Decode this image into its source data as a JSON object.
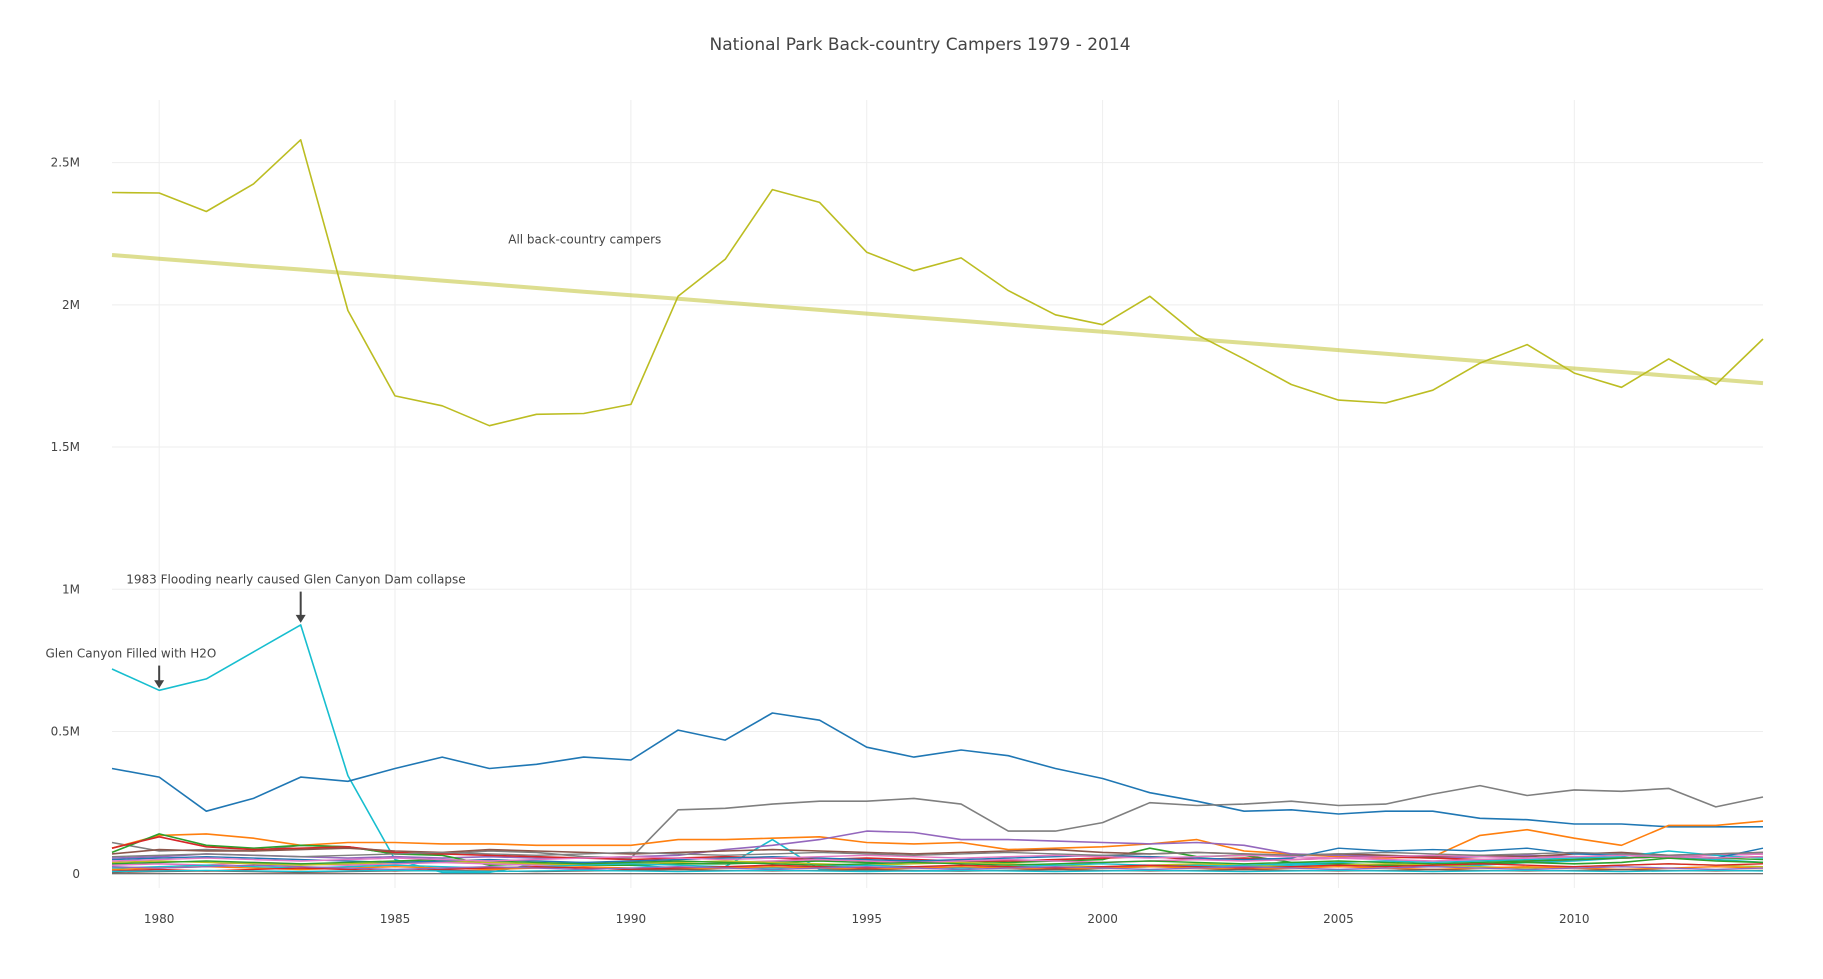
{
  "chart_data": {
    "type": "line",
    "title": "National Park Back-country Campers 1979 - 2014",
    "xlabel": "",
    "ylabel": "",
    "xlim": [
      1979,
      2014
    ],
    "ylim": [
      -50000,
      2720000
    ],
    "grid": true,
    "legend": "none",
    "x_ticks": [
      1980,
      1985,
      1990,
      1995,
      2000,
      2005,
      2010
    ],
    "y_ticks": [
      {
        "value": 0,
        "label": "0"
      },
      {
        "value": 500000,
        "label": "0.5M"
      },
      {
        "value": 1000000,
        "label": "1M"
      },
      {
        "value": 1500000,
        "label": "1.5M"
      },
      {
        "value": 2000000,
        "label": "2M"
      },
      {
        "value": 2500000,
        "label": "2.5M"
      }
    ],
    "x": [
      1979,
      1980,
      1981,
      1982,
      1983,
      1984,
      1985,
      1986,
      1987,
      1988,
      1989,
      1990,
      1991,
      1992,
      1993,
      1994,
      1995,
      1996,
      1997,
      1998,
      1999,
      2000,
      2001,
      2002,
      2003,
      2004,
      2005,
      2006,
      2007,
      2008,
      2009,
      2010,
      2011,
      2012,
      2013,
      2014
    ],
    "series": [
      {
        "color": "#bcbd22",
        "width": 1.6,
        "values": [
          2395000,
          2393000,
          2328000,
          2425000,
          2580000,
          1980000,
          1680000,
          1645000,
          1575000,
          1615000,
          1618000,
          1650000,
          2030000,
          2160000,
          2405000,
          2360000,
          2185000,
          2120000,
          2165000,
          2050000,
          1965000,
          1930000,
          2030000,
          1895000,
          1810000,
          1720000,
          1665000,
          1655000,
          1700000,
          1795000,
          1860000,
          1760000,
          1710000,
          1810000,
          1720000,
          1880000
        ]
      },
      {
        "color": "#bcbd22",
        "width": 4,
        "opacity": 0.5,
        "values": [
          2175000,
          2162000,
          2149000,
          2136000,
          2124000,
          2111000,
          2098000,
          2085000,
          2072000,
          2059000,
          2046000,
          2034000,
          2021000,
          2008000,
          1995000,
          1982000,
          1969000,
          1956000,
          1944000,
          1931000,
          1918000,
          1905000,
          1892000,
          1879000,
          1866000,
          1854000,
          1841000,
          1828000,
          1815000,
          1802000,
          1789000,
          1776000,
          1764000,
          1751000,
          1738000,
          1725000
        ]
      },
      {
        "color": "#17becf",
        "width": 1.6,
        "values": [
          720000,
          645000,
          685000,
          780000,
          875000,
          345000,
          50000,
          5000,
          5000,
          35000,
          40000,
          30000,
          20000,
          25000,
          120000,
          15000,
          12000,
          10000,
          10000,
          12000,
          15000,
          20000,
          25000,
          30000,
          25000,
          30000,
          35000,
          30000,
          25000,
          30000,
          40000,
          45000,
          55000,
          60000,
          50000,
          40000
        ]
      },
      {
        "color": "#1f77b4",
        "width": 1.6,
        "values": [
          370000,
          340000,
          220000,
          265000,
          340000,
          325000,
          370000,
          410000,
          370000,
          385000,
          410000,
          400000,
          505000,
          470000,
          565000,
          540000,
          445000,
          410000,
          435000,
          415000,
          370000,
          335000,
          285000,
          255000,
          220000,
          225000,
          210000,
          220000,
          220000,
          195000,
          190000,
          175000,
          175000,
          165000,
          165000,
          165000
        ]
      },
      {
        "color": "#7f7f7f",
        "width": 1.6,
        "values": [
          110000,
          80000,
          85000,
          80000,
          100000,
          95000,
          70000,
          70000,
          80000,
          75000,
          60000,
          55000,
          225000,
          230000,
          245000,
          255000,
          255000,
          265000,
          245000,
          150000,
          150000,
          180000,
          250000,
          240000,
          245000,
          255000,
          240000,
          245000,
          280000,
          310000,
          275000,
          295000,
          290000,
          300000,
          235000,
          270000
        ]
      },
      {
        "color": "#ff7f0e",
        "width": 1.6,
        "values": [
          90000,
          135000,
          140000,
          125000,
          100000,
          110000,
          110000,
          105000,
          105000,
          100000,
          100000,
          100000,
          120000,
          120000,
          125000,
          130000,
          110000,
          105000,
          110000,
          85000,
          90000,
          95000,
          105000,
          120000,
          80000,
          70000,
          60000,
          55000,
          60000,
          135000,
          155000,
          125000,
          100000,
          170000,
          170000,
          185000
        ]
      },
      {
        "color": "#9467bd",
        "width": 1.6,
        "values": [
          55000,
          60000,
          70000,
          65000,
          60000,
          55000,
          60000,
          55000,
          60000,
          55000,
          55000,
          60000,
          65000,
          85000,
          100000,
          120000,
          150000,
          145000,
          120000,
          120000,
          115000,
          110000,
          105000,
          110000,
          100000,
          70000,
          65000,
          60000,
          55000,
          60000,
          65000,
          60000,
          55000,
          60000,
          65000,
          70000
        ]
      },
      {
        "color": "#2ca02c",
        "width": 1.6,
        "values": [
          75000,
          140000,
          100000,
          90000,
          100000,
          95000,
          70000,
          65000,
          30000,
          35000,
          30000,
          30000,
          35000,
          35000,
          40000,
          45000,
          40000,
          45000,
          45000,
          40000,
          45000,
          50000,
          90000,
          60000,
          65000,
          40000,
          35000,
          30000,
          30000,
          35000,
          40000,
          35000,
          40000,
          55000,
          45000,
          40000
        ]
      },
      {
        "color": "#d62728",
        "width": 1.6,
        "values": [
          90000,
          130000,
          95000,
          85000,
          90000,
          95000,
          75000,
          70000,
          65000,
          60000,
          55000,
          50000,
          55000,
          60000,
          55000,
          50000,
          55000,
          50000,
          45000,
          45000,
          50000,
          55000,
          60000,
          50000,
          55000,
          50000,
          55000,
          60000,
          55000,
          50000,
          45000,
          50000,
          55000,
          60000,
          55000,
          60000
        ]
      },
      {
        "color": "#8c564b",
        "width": 1.6,
        "values": [
          70000,
          85000,
          80000,
          80000,
          85000,
          90000,
          80000,
          75000,
          85000,
          80000,
          75000,
          70000,
          75000,
          80000,
          85000,
          80000,
          75000,
          70000,
          75000,
          80000,
          85000,
          75000,
          70000,
          75000,
          70000,
          65000,
          70000,
          65000,
          60000,
          65000,
          60000,
          70000,
          75000,
          65000,
          70000,
          75000
        ]
      },
      {
        "color": "#e377c2",
        "width": 1.6,
        "values": [
          30000,
          35000,
          30000,
          40000,
          35000,
          30000,
          35000,
          40000,
          35000,
          30000,
          35000,
          40000,
          45000,
          40000,
          45000,
          50000,
          45000,
          40000,
          45000,
          50000,
          45000,
          40000,
          45000,
          50000,
          45000,
          50000,
          55000,
          50000,
          45000,
          50000,
          55000,
          60000,
          55000,
          60000,
          65000,
          70000
        ]
      },
      {
        "color": "#bcbd22",
        "width": 1.4,
        "values": [
          40000,
          45000,
          40000,
          35000,
          30000,
          35000,
          40000,
          45000,
          40000,
          35000,
          30000,
          35000,
          40000,
          45000,
          40000,
          35000,
          30000,
          35000,
          40000,
          35000,
          30000,
          25000,
          30000,
          35000,
          30000,
          25000,
          30000,
          35000,
          30000,
          25000,
          20000,
          25000,
          30000,
          35000,
          30000,
          25000
        ]
      },
      {
        "color": "#17becf",
        "width": 1.4,
        "values": [
          20000,
          25000,
          30000,
          25000,
          20000,
          25000,
          30000,
          25000,
          20000,
          25000,
          30000,
          35000,
          30000,
          25000,
          20000,
          25000,
          30000,
          25000,
          20000,
          25000,
          30000,
          35000,
          30000,
          25000,
          30000,
          35000,
          40000,
          45000,
          40000,
          45000,
          50000,
          55000,
          60000,
          80000,
          65000,
          55000
        ]
      },
      {
        "color": "#1f77b4",
        "width": 1.4,
        "values": [
          50000,
          55000,
          60000,
          55000,
          50000,
          45000,
          40000,
          45000,
          50000,
          45000,
          40000,
          45000,
          50000,
          55000,
          60000,
          55000,
          50000,
          45000,
          50000,
          55000,
          60000,
          65000,
          60000,
          55000,
          50000,
          55000,
          90000,
          80000,
          85000,
          80000,
          90000,
          70000,
          65000,
          60000,
          55000,
          90000
        ]
      },
      {
        "color": "#ff7f0e",
        "width": 1.4,
        "values": [
          15000,
          20000,
          25000,
          20000,
          15000,
          20000,
          25000,
          20000,
          15000,
          20000,
          25000,
          20000,
          15000,
          20000,
          25000,
          20000,
          15000,
          20000,
          25000,
          20000,
          15000,
          20000,
          25000,
          20000,
          15000,
          20000,
          25000,
          20000,
          15000,
          20000,
          25000,
          20000,
          15000,
          20000,
          25000,
          20000
        ]
      },
      {
        "color": "#2ca02c",
        "width": 1.4,
        "values": [
          35000,
          40000,
          45000,
          40000,
          35000,
          40000,
          45000,
          50000,
          45000,
          40000,
          35000,
          40000,
          45000,
          40000,
          35000,
          30000,
          35000,
          40000,
          35000,
          30000,
          35000,
          40000,
          45000,
          40000,
          35000,
          40000,
          45000,
          40000,
          35000,
          40000,
          45000,
          50000,
          55000,
          60000,
          55000,
          50000
        ]
      },
      {
        "color": "#d62728",
        "width": 1.4,
        "values": [
          10000,
          15000,
          10000,
          15000,
          20000,
          15000,
          10000,
          15000,
          20000,
          25000,
          20000,
          15000,
          20000,
          25000,
          30000,
          25000,
          20000,
          25000,
          30000,
          25000,
          20000,
          25000,
          30000,
          25000,
          20000,
          25000,
          30000,
          25000,
          30000,
          35000,
          30000,
          25000,
          30000,
          35000,
          30000,
          35000
        ]
      },
      {
        "color": "#9467bd",
        "width": 1.4,
        "values": [
          25000,
          20000,
          25000,
          30000,
          25000,
          20000,
          15000,
          20000,
          25000,
          20000,
          15000,
          20000,
          25000,
          20000,
          15000,
          20000,
          25000,
          20000,
          15000,
          20000,
          25000,
          20000,
          15000,
          20000,
          25000,
          20000,
          15000,
          20000,
          25000,
          20000,
          15000,
          20000,
          25000,
          20000,
          15000,
          20000
        ]
      },
      {
        "color": "#8c564b",
        "width": 1.4,
        "values": [
          5000,
          8000,
          10000,
          8000,
          5000,
          8000,
          10000,
          12000,
          10000,
          8000,
          10000,
          12000,
          15000,
          12000,
          10000,
          12000,
          15000,
          12000,
          10000,
          12000,
          15000,
          12000,
          10000,
          12000,
          15000,
          12000,
          10000,
          12000,
          15000,
          12000,
          10000,
          12000,
          15000,
          12000,
          10000,
          12000
        ]
      },
      {
        "color": "#e377c2",
        "width": 1.4,
        "values": [
          45000,
          50000,
          55000,
          50000,
          45000,
          50000,
          55000,
          50000,
          45000,
          50000,
          55000,
          60000,
          55000,
          50000,
          55000,
          60000,
          65000,
          60000,
          55000,
          60000,
          65000,
          60000,
          55000,
          60000,
          65000,
          60000,
          55000,
          60000,
          65000,
          60000,
          55000,
          60000,
          65000,
          60000,
          55000,
          60000
        ]
      },
      {
        "color": "#7f7f7f",
        "width": 1.4,
        "values": [
          60000,
          65000,
          70000,
          65000,
          60000,
          65000,
          70000,
          75000,
          70000,
          65000,
          70000,
          75000,
          70000,
          65000,
          70000,
          75000,
          70000,
          65000,
          70000,
          75000,
          70000,
          65000,
          70000,
          75000,
          70000,
          65000,
          70000,
          75000,
          70000,
          65000,
          70000,
          75000,
          70000,
          65000,
          70000,
          75000
        ]
      },
      {
        "color": "#17becf",
        "width": 1.4,
        "values": [
          8000,
          10000,
          12000,
          10000,
          8000,
          10000,
          12000,
          10000,
          8000,
          10000,
          12000,
          10000,
          8000,
          10000,
          12000,
          10000,
          8000,
          10000,
          12000,
          10000,
          8000,
          10000,
          12000,
          10000,
          8000,
          10000,
          12000,
          10000,
          8000,
          10000,
          12000,
          10000,
          8000,
          10000,
          12000,
          10000
        ]
      }
    ],
    "annotations": [
      {
        "text": "All back-country campers",
        "x": 1987.4,
        "y": 2215000,
        "arrow": false
      },
      {
        "text": "1983 Flooding nearly caused Glen Canyon Dam collapse",
        "x": 1982.9,
        "y": 1020000,
        "arrow": true,
        "target_x": 1983,
        "target_y": 875000
      },
      {
        "text": "Glen Canyon Filled with H2O",
        "x": 1979.4,
        "y": 760000,
        "arrow": true,
        "target_x": 1980,
        "target_y": 645000
      }
    ]
  }
}
